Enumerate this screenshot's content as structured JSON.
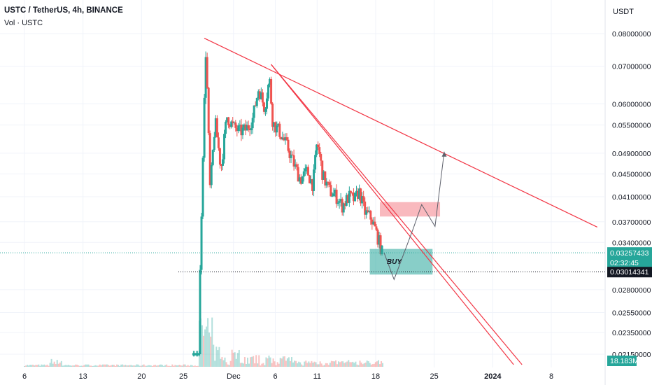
{
  "header": {
    "title": "USTC / TetherUS, 4h, BINANCE",
    "volume_label": "Vol · USTC",
    "currency": "USDT"
  },
  "colors": {
    "up": "#26a69a",
    "down": "#ef5350",
    "trendline": "#f23645",
    "projection": "#5d606b",
    "buy_zone": "#26a69a",
    "sell_zone": "#f7a1a8",
    "grid": "#f0f3fa"
  },
  "chart_data": {
    "type": "candlestick",
    "symbol": "USTC / TetherUS",
    "interval": "4h",
    "exchange": "BINANCE",
    "y_scale": "log",
    "y_ticks": [
      0.08,
      0.07,
      0.06,
      0.055,
      0.049,
      0.045,
      0.041,
      0.037,
      0.034,
      0.028,
      0.0255,
      0.0235,
      0.0215
    ],
    "y_tick_labels": [
      "0.08000000",
      "0.07000000",
      "0.06000000",
      "0.05500000",
      "0.04900000",
      "0.04500000",
      "0.04100000",
      "0.03700000",
      "0.03400000",
      "0.02800000",
      "0.02550000",
      "0.02350000",
      "0.02150000"
    ],
    "x_ticks": [
      {
        "day": 6,
        "label": "6",
        "bold": false
      },
      {
        "day": 13,
        "label": "13",
        "bold": false
      },
      {
        "day": 20,
        "label": "20",
        "bold": false
      },
      {
        "day": 25,
        "label": "25",
        "bold": false
      },
      {
        "day": 31,
        "label": "Dec",
        "bold": false
      },
      {
        "day": 36,
        "label": "6",
        "bold": false
      },
      {
        "day": 41,
        "label": "11",
        "bold": false
      },
      {
        "day": 48,
        "label": "18",
        "bold": false
      },
      {
        "day": 55,
        "label": "25",
        "bold": false
      },
      {
        "day": 62,
        "label": "2024",
        "bold": true
      },
      {
        "day": 69,
        "label": "8",
        "bold": false
      }
    ],
    "last_price": {
      "value": "0.03257433",
      "countdown": "02:32:45",
      "y": 0.03257433
    },
    "marked_price": {
      "value": "0.03014341",
      "y": 0.03014341
    },
    "volume_label": "18.183M",
    "price_path": [
      [
        27.0,
        0.03
      ],
      [
        27.3,
        0.047
      ],
      [
        27.7,
        0.076
      ],
      [
        28.2,
        0.042
      ],
      [
        28.8,
        0.056
      ],
      [
        29.5,
        0.046
      ],
      [
        30.2,
        0.057
      ],
      [
        31.0,
        0.0545
      ],
      [
        31.8,
        0.0535
      ],
      [
        32.5,
        0.054
      ],
      [
        33.3,
        0.0565
      ],
      [
        34.0,
        0.064
      ],
      [
        34.7,
        0.059
      ],
      [
        35.3,
        0.0665
      ],
      [
        35.7,
        0.0555
      ],
      [
        36.5,
        0.0535
      ],
      [
        37.5,
        0.05
      ],
      [
        38.3,
        0.0465
      ],
      [
        39.0,
        0.044
      ],
      [
        39.8,
        0.0455
      ],
      [
        40.5,
        0.043
      ],
      [
        41.0,
        0.0515
      ],
      [
        41.7,
        0.0445
      ],
      [
        42.5,
        0.042
      ],
      [
        43.3,
        0.041
      ],
      [
        44.0,
        0.0395
      ],
      [
        44.8,
        0.041
      ],
      [
        45.5,
        0.0405
      ],
      [
        46.0,
        0.042
      ],
      [
        46.7,
        0.0385
      ],
      [
        47.5,
        0.0375
      ],
      [
        48.3,
        0.0345
      ],
      [
        48.8,
        0.0325
      ]
    ],
    "trendlines": [
      {
        "from": [
          27.5,
          0.0785
        ],
        "to": [
          74.5,
          0.0362
        ]
      },
      {
        "from": [
          35.5,
          0.0705
        ],
        "to": [
          64.5,
          0.0206
        ]
      },
      {
        "from": [
          35.5,
          0.0705
        ],
        "to": [
          65.5,
          0.0206
        ]
      }
    ],
    "projection_path": [
      [
        49.0,
        0.0326
      ],
      [
        50.2,
        0.0292
      ],
      [
        52.5,
        0.036
      ],
      [
        53.5,
        0.0397
      ],
      [
        55.1,
        0.0363
      ],
      [
        56.2,
        0.0493
      ]
    ],
    "zones": [
      {
        "type": "sell",
        "x": [
          48.5,
          55.7
        ],
        "y": [
          0.0378,
          0.0401
        ]
      },
      {
        "type": "buy",
        "label": "BUY",
        "x": [
          47.3,
          54.8
        ],
        "y": [
          0.0298,
          0.0331
        ]
      }
    ]
  }
}
